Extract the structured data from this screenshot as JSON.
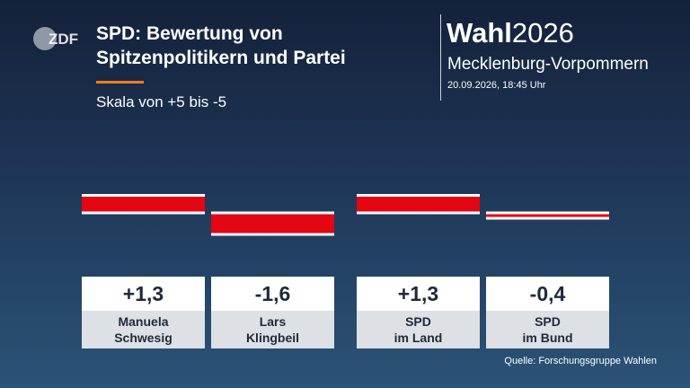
{
  "header": {
    "logo_text": "ZDF",
    "title_lines": [
      "SPD: Bewertung von",
      "Spitzenpolitikern und Partei"
    ],
    "subtitle": "Skala von +5 bis -5",
    "brand_bold": "Wahl",
    "brand_year": "2026",
    "region": "Mecklenburg-Vorpommern",
    "timestamp": "20.09.2026, 18:45 Uhr"
  },
  "chart_data": {
    "type": "bar",
    "title": "SPD: Bewertung von Spitzenpolitikern und Partei",
    "subtitle": "Skala von +5 bis -5",
    "scale": [
      -5,
      5
    ],
    "categories": [
      [
        "Manuela",
        "Schwesig"
      ],
      [
        "Lars",
        "Klingbeil"
      ],
      [
        "SPD",
        "im Land"
      ],
      [
        "SPD",
        "im Bund"
      ]
    ],
    "values": [
      1.3,
      -1.6,
      1.3,
      -0.4
    ],
    "value_labels": [
      "+1,3",
      "-1,6",
      "+1,3",
      "-0,4"
    ],
    "bar_color": "#e30613"
  },
  "footer": {
    "source": "Quelle: Forschungsgruppe Wahlen"
  },
  "colors": {
    "accent": "#f07c1f",
    "bar": "#e30613"
  }
}
